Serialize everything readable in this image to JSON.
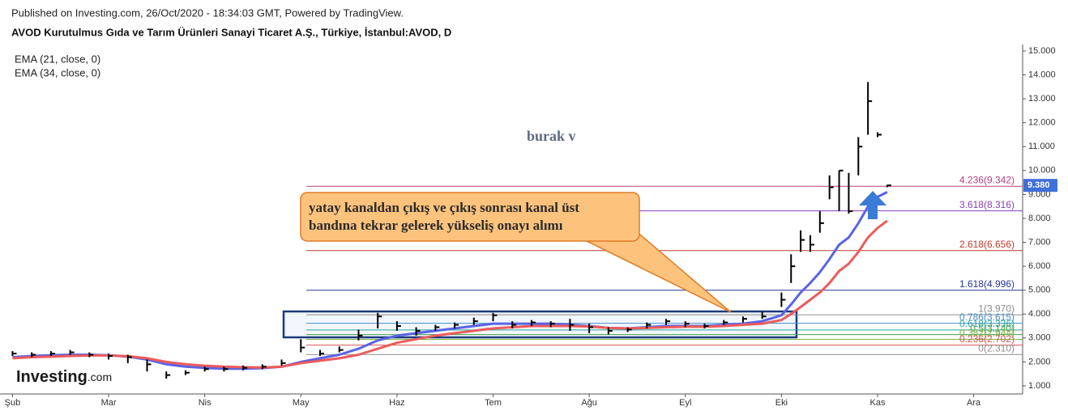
{
  "chart_data": {
    "type": "ohlc",
    "subtitle": "Published on Investing.com, 26/Oct/2020 - 18:34:03 GMT, Powered by TradingView.",
    "title": "AVOD Kurutulmus Gıda ve Tarım Ürünleri Sanayi Ticaret A.Ş., Türkiye, İstanbul:AVOD, D",
    "xlim": [
      -0.13,
      10.45
    ],
    "xticks": [
      {
        "value": 0,
        "label": "Şub"
      },
      {
        "value": 1,
        "label": "Mar"
      },
      {
        "value": 2,
        "label": "Nis"
      },
      {
        "value": 3,
        "label": "May"
      },
      {
        "value": 4,
        "label": "Haz"
      },
      {
        "value": 5,
        "label": "Tem"
      },
      {
        "value": 6,
        "label": "Ağu"
      },
      {
        "value": 7,
        "label": "Eyl"
      },
      {
        "value": 8,
        "label": "Eki"
      },
      {
        "value": 9,
        "label": "Kas"
      },
      {
        "value": 10,
        "label": "Ara"
      }
    ],
    "ylim": [
      0.66,
      15.27
    ],
    "yticks": [
      {
        "value": 1,
        "label": "1.000"
      },
      {
        "value": 2,
        "label": "2.000"
      },
      {
        "value": 3,
        "label": "3.000"
      },
      {
        "value": 4,
        "label": "4.000"
      },
      {
        "value": 5,
        "label": "5.000"
      },
      {
        "value": 6,
        "label": "6.000"
      },
      {
        "value": 7,
        "label": "7.000"
      },
      {
        "value": 8,
        "label": "8.000"
      },
      {
        "value": 9,
        "label": "9.000"
      },
      {
        "value": 10,
        "label": "10.000"
      },
      {
        "value": 11,
        "label": "11.000"
      },
      {
        "value": 12,
        "label": "12.000"
      },
      {
        "value": 13,
        "label": "13.000"
      },
      {
        "value": 14,
        "label": "14.000"
      },
      {
        "value": 15,
        "label": "15.000"
      }
    ],
    "grid": false,
    "bar_color": "#000000",
    "x": [
      0,
      0.2,
      0.4,
      0.6,
      0.8,
      1.0,
      1.2,
      1.4,
      1.6,
      1.8,
      2.0,
      2.2,
      2.4,
      2.6,
      2.8,
      3.0,
      3.2,
      3.4,
      3.6,
      3.8,
      4.0,
      4.2,
      4.4,
      4.6,
      4.8,
      5.0,
      5.2,
      5.4,
      5.6,
      5.8,
      6.0,
      6.2,
      6.4,
      6.6,
      6.8,
      7.0,
      7.2,
      7.4,
      7.6,
      7.8,
      8.0,
      8.1,
      8.2,
      8.3,
      8.4,
      8.5,
      8.6,
      8.7,
      8.8,
      8.9,
      9.0,
      9.1
    ],
    "high": [
      2.45,
      2.4,
      2.45,
      2.5,
      2.4,
      2.35,
      2.3,
      2.1,
      1.6,
      1.65,
      1.8,
      1.8,
      1.85,
      1.9,
      2.1,
      2.95,
      2.5,
      2.65,
      3.35,
      4.05,
      3.7,
      3.45,
      3.55,
      3.65,
      3.85,
      4.05,
      3.7,
      3.75,
      3.7,
      3.8,
      3.6,
      3.45,
      3.45,
      3.65,
      3.8,
      3.7,
      3.6,
      3.75,
      3.9,
      4.1,
      4.9,
      6.5,
      7.5,
      7.3,
      8.3,
      9.8,
      10.0,
      9.9,
      11.4,
      13.7,
      11.6,
      9.4
    ],
    "low": [
      2.25,
      2.2,
      2.25,
      2.3,
      2.2,
      2.1,
      1.95,
      1.6,
      1.3,
      1.45,
      1.6,
      1.6,
      1.65,
      1.7,
      1.85,
      2.4,
      2.25,
      2.4,
      2.9,
      3.4,
      3.3,
      3.1,
      3.3,
      3.4,
      3.55,
      3.7,
      3.4,
      3.5,
      3.45,
      3.3,
      3.2,
      3.15,
      3.25,
      3.4,
      3.55,
      3.45,
      3.4,
      3.55,
      3.65,
      3.8,
      4.3,
      5.3,
      6.6,
      6.6,
      7.4,
      8.8,
      8.3,
      8.2,
      9.8,
      11.5,
      11.4,
      9.3
    ],
    "close": [
      2.35,
      2.3,
      2.35,
      2.4,
      2.3,
      2.25,
      2.2,
      1.9,
      1.45,
      1.55,
      1.7,
      1.7,
      1.75,
      1.8,
      1.95,
      2.6,
      2.35,
      2.5,
      3.1,
      3.9,
      3.5,
      3.3,
      3.45,
      3.55,
      3.7,
      3.95,
      3.55,
      3.65,
      3.6,
      3.55,
      3.45,
      3.3,
      3.35,
      3.55,
      3.7,
      3.6,
      3.5,
      3.65,
      3.8,
      3.9,
      4.6,
      6.0,
      7.1,
      6.9,
      7.8,
      9.3,
      10.0,
      8.3,
      11.0,
      12.9,
      11.5,
      9.38
    ],
    "series": [
      {
        "name": "EMA (21, close, 0)",
        "color": "#5a63e6",
        "values": [
          2.2,
          2.25,
          2.28,
          2.3,
          2.3,
          2.28,
          2.22,
          2.1,
          1.9,
          1.8,
          1.75,
          1.72,
          1.72,
          1.74,
          1.8,
          2.0,
          2.15,
          2.3,
          2.55,
          2.9,
          3.1,
          3.2,
          3.3,
          3.4,
          3.5,
          3.6,
          3.6,
          3.6,
          3.6,
          3.55,
          3.5,
          3.42,
          3.4,
          3.45,
          3.5,
          3.5,
          3.5,
          3.55,
          3.6,
          3.7,
          3.95,
          4.4,
          4.9,
          5.3,
          5.75,
          6.3,
          6.9,
          7.2,
          7.8,
          8.5,
          8.9,
          9.1
        ]
      },
      {
        "name": "EMA (34, close, 0)",
        "color": "#ec5b5b",
        "values": [
          2.15,
          2.2,
          2.22,
          2.25,
          2.27,
          2.27,
          2.24,
          2.15,
          2.0,
          1.9,
          1.84,
          1.8,
          1.78,
          1.77,
          1.8,
          1.95,
          2.05,
          2.15,
          2.3,
          2.55,
          2.8,
          2.95,
          3.1,
          3.2,
          3.3,
          3.4,
          3.45,
          3.5,
          3.5,
          3.5,
          3.48,
          3.42,
          3.4,
          3.42,
          3.45,
          3.47,
          3.47,
          3.5,
          3.55,
          3.6,
          3.75,
          4.0,
          4.3,
          4.6,
          4.9,
          5.3,
          5.8,
          6.1,
          6.6,
          7.2,
          7.6,
          7.9
        ]
      }
    ],
    "fib": [
      {
        "label": "4.236(9.342)",
        "value": 9.342,
        "color": "#b5417f"
      },
      {
        "label": "3.618(8.316)",
        "value": 8.316,
        "color": "#8a3cb3"
      },
      {
        "label": "2.618(6.656)",
        "value": 6.656,
        "color": "#c0392b"
      },
      {
        "label": "1.618(4.996)",
        "value": 4.996,
        "color": "#283593"
      },
      {
        "label": "1(3.970)",
        "value": 3.97,
        "color": "#8c8c8c"
      },
      {
        "label": "0.786(3.615)",
        "value": 3.615,
        "color": "#4a90c8"
      },
      {
        "label": "0.618(3.336)",
        "value": 3.336,
        "color": "#26a69a"
      },
      {
        "label": "0.5(3.140)",
        "value": 3.14,
        "color": "#43a047"
      },
      {
        "label": "0.382(2.944)",
        "value": 2.944,
        "color": "#7cb342"
      },
      {
        "label": "0.236(2.702)",
        "value": 2.702,
        "color": "#d9534f"
      },
      {
        "label": "0(2.310)",
        "value": 2.31,
        "color": "#8c8c8c"
      }
    ],
    "last_price": {
      "value": 9.38,
      "label": "9.380",
      "color": "#3f6fd8"
    },
    "annotations": {
      "callout": [
        "yatay kanaldan çıkış ve çıkış sonrası kanal üst",
        "bandına tekrar gelerek yükseliş onayı alımı"
      ],
      "signature": "burak v"
    },
    "logo": [
      "Investing",
      ".com"
    ]
  }
}
